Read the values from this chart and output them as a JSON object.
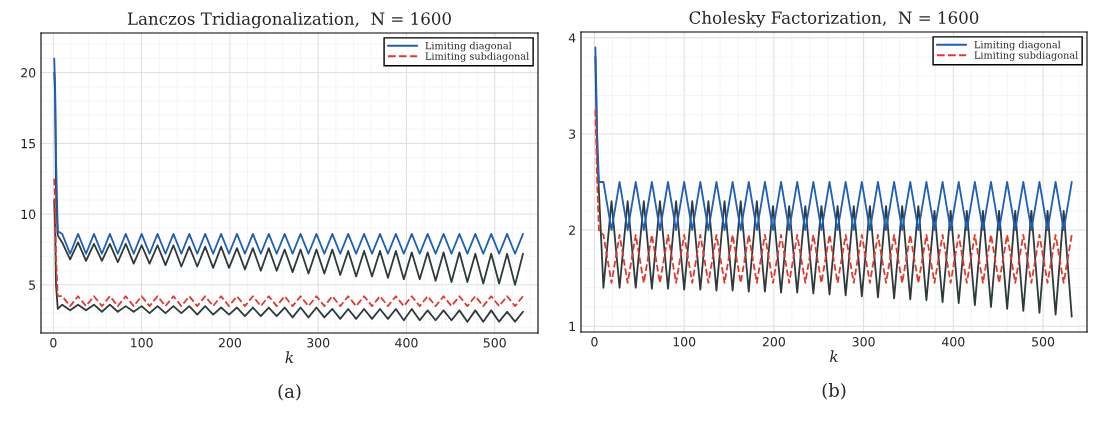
{
  "chart_data": [
    {
      "type": "line",
      "title": "Lanczos Tridiagonalization,  N = 1600",
      "xlabel": "k",
      "xlim": [
        -14,
        549
      ],
      "ylim": [
        1.6,
        22.8
      ],
      "xticks": [
        0,
        100,
        200,
        300,
        400,
        500
      ],
      "yticks": [
        5,
        10,
        15,
        20
      ],
      "grid": true,
      "legend": "top right",
      "annotations": [
        "(a)"
      ],
      "x": [
        1,
        2,
        3,
        5,
        10,
        19,
        28,
        37,
        46,
        55,
        64,
        73,
        82,
        91,
        100,
        109,
        118,
        127,
        136,
        145,
        154,
        163,
        172,
        181,
        190,
        199,
        208,
        217,
        226,
        235,
        244,
        253,
        262,
        271,
        280,
        289,
        298,
        307,
        316,
        325,
        334,
        343,
        352,
        361,
        370,
        379,
        388,
        397,
        406,
        415,
        424,
        433,
        442,
        451,
        460,
        469,
        478,
        487,
        496,
        505,
        514,
        523,
        532
      ],
      "series": [
        {
          "color": "#2f3a3a",
          "values": [
            20,
            18.5,
            11.5,
            8.5,
            8.0,
            6.8,
            8.0,
            6.7,
            7.9,
            6.7,
            7.9,
            6.6,
            7.9,
            6.5,
            7.8,
            6.5,
            7.8,
            6.4,
            7.8,
            6.3,
            7.7,
            6.3,
            7.7,
            6.2,
            7.7,
            6.2,
            7.6,
            6.1,
            7.6,
            6.0,
            7.6,
            6.0,
            7.5,
            5.9,
            7.5,
            5.8,
            7.5,
            5.8,
            7.5,
            5.7,
            7.4,
            5.6,
            7.4,
            5.6,
            7.4,
            5.5,
            7.4,
            5.4,
            7.3,
            5.4,
            7.3,
            5.3,
            7.3,
            5.2,
            7.3,
            5.2,
            7.2,
            5.1,
            7.2,
            5.1,
            7.2,
            5.0,
            7.2
          ]
        },
        {
          "color": "#2f3a3a",
          "values": [
            11,
            9,
            5,
            3.3,
            3.6,
            3.2,
            3.6,
            3.2,
            3.6,
            3.1,
            3.6,
            3.1,
            3.5,
            3.1,
            3.5,
            3.0,
            3.5,
            3.0,
            3.5,
            3.0,
            3.5,
            2.9,
            3.5,
            2.9,
            3.4,
            2.9,
            3.4,
            2.8,
            3.4,
            2.8,
            3.4,
            2.8,
            3.4,
            2.7,
            3.4,
            2.7,
            3.4,
            2.7,
            3.3,
            2.6,
            3.3,
            2.6,
            3.3,
            2.6,
            3.3,
            2.6,
            3.3,
            2.5,
            3.3,
            2.5,
            3.2,
            2.5,
            3.2,
            2.5,
            3.2,
            2.4,
            3.2,
            2.4,
            3.2,
            2.4,
            3.1,
            2.4,
            3.1
          ]
        },
        {
          "name": "Limiting diagonal",
          "color": "#1f5fb5",
          "line_style": "solid",
          "values": [
            21,
            19,
            14,
            8.8,
            8.6,
            7.2,
            8.6,
            7.2,
            8.6,
            7.2,
            8.6,
            7.2,
            8.6,
            7.2,
            8.6,
            7.2,
            8.6,
            7.2,
            8.6,
            7.2,
            8.6,
            7.2,
            8.6,
            7.2,
            8.6,
            7.2,
            8.6,
            7.2,
            8.6,
            7.2,
            8.6,
            7.2,
            8.6,
            7.2,
            8.6,
            7.2,
            8.6,
            7.2,
            8.6,
            7.2,
            8.6,
            7.2,
            8.6,
            7.2,
            8.6,
            7.2,
            8.6,
            7.2,
            8.6,
            7.2,
            8.6,
            7.2,
            8.6,
            7.2,
            8.6,
            7.2,
            8.6,
            7.2,
            8.6,
            7.2,
            8.6,
            7.2,
            8.6
          ]
        },
        {
          "name": "Limiting subdiagonal",
          "color": "#e03a2e",
          "line_style": "dashed",
          "values": [
            12.5,
            11,
            7,
            4.2,
            4.2,
            3.5,
            4.2,
            3.5,
            4.2,
            3.5,
            4.2,
            3.5,
            4.2,
            3.5,
            4.2,
            3.5,
            4.2,
            3.5,
            4.2,
            3.5,
            4.2,
            3.5,
            4.2,
            3.5,
            4.2,
            3.5,
            4.2,
            3.5,
            4.2,
            3.5,
            4.2,
            3.5,
            4.2,
            3.5,
            4.2,
            3.5,
            4.2,
            3.5,
            4.2,
            3.5,
            4.2,
            3.5,
            4.2,
            3.5,
            4.2,
            3.5,
            4.2,
            3.5,
            4.2,
            3.5,
            4.2,
            3.5,
            4.2,
            3.5,
            4.2,
            3.5,
            4.2,
            3.5,
            4.2,
            3.5,
            4.2,
            3.5,
            4.2
          ]
        }
      ]
    },
    {
      "type": "line",
      "title": "Cholesky Factorization,  N = 1600",
      "xlabel": "k",
      "xlim": [
        -15,
        549
      ],
      "ylim": [
        0.94,
        4.06
      ],
      "xticks": [
        0,
        100,
        200,
        300,
        400,
        500
      ],
      "yticks": [
        1,
        2,
        3,
        4
      ],
      "grid": true,
      "legend": "top right",
      "annotations": [
        "(b)"
      ],
      "x": [
        1,
        2,
        3,
        5,
        10,
        19,
        28,
        37,
        46,
        55,
        64,
        73,
        82,
        91,
        100,
        109,
        118,
        127,
        136,
        145,
        154,
        163,
        172,
        181,
        190,
        199,
        208,
        217,
        226,
        235,
        244,
        253,
        262,
        271,
        280,
        289,
        298,
        307,
        316,
        325,
        334,
        343,
        352,
        361,
        370,
        379,
        388,
        397,
        406,
        415,
        424,
        433,
        442,
        451,
        460,
        469,
        478,
        487,
        496,
        505,
        514,
        523,
        532
      ],
      "series": [
        {
          "color": "#2f3a3a",
          "values": [
            3.8,
            3.3,
            2.8,
            2.4,
            1.4,
            2.3,
            1.4,
            2.3,
            1.4,
            2.3,
            1.39,
            2.3,
            1.39,
            2.3,
            1.38,
            2.3,
            1.38,
            2.3,
            1.37,
            2.3,
            1.37,
            2.3,
            1.36,
            2.3,
            1.36,
            2.25,
            1.35,
            2.25,
            1.35,
            2.25,
            1.34,
            2.25,
            1.33,
            2.25,
            1.32,
            2.25,
            1.31,
            2.25,
            1.3,
            2.25,
            1.29,
            2.25,
            1.28,
            2.25,
            1.27,
            2.2,
            1.25,
            2.2,
            1.24,
            2.2,
            1.22,
            2.2,
            1.2,
            2.2,
            1.18,
            2.2,
            1.16,
            2.2,
            1.14,
            2.2,
            1.12,
            2.2,
            1.1
          ]
        },
        {
          "name": "Limiting diagonal",
          "color": "#1f5fb5",
          "line_style": "solid",
          "values": [
            3.9,
            3.5,
            3.0,
            2.5,
            2.5,
            2.0,
            2.5,
            2.0,
            2.5,
            2.0,
            2.5,
            2.0,
            2.5,
            2.0,
            2.5,
            2.0,
            2.5,
            2.0,
            2.5,
            2.0,
            2.5,
            2.0,
            2.5,
            2.0,
            2.5,
            2.0,
            2.5,
            2.0,
            2.5,
            2.0,
            2.5,
            2.0,
            2.5,
            2.0,
            2.5,
            2.0,
            2.5,
            2.0,
            2.5,
            2.0,
            2.5,
            2.0,
            2.5,
            2.0,
            2.5,
            2.0,
            2.5,
            2.0,
            2.5,
            2.0,
            2.5,
            2.0,
            2.5,
            2.0,
            2.5,
            2.0,
            2.5,
            2.0,
            2.5,
            2.0,
            2.5,
            2.0,
            2.5
          ]
        },
        {
          "name": "Limiting subdiagonal",
          "color": "#e03a2e",
          "line_style": "dashed",
          "values": [
            3.25,
            2.9,
            2.5,
            2.0,
            1.95,
            1.45,
            1.95,
            1.45,
            1.95,
            1.45,
            1.95,
            1.45,
            1.95,
            1.45,
            1.95,
            1.45,
            1.95,
            1.45,
            1.95,
            1.45,
            1.95,
            1.45,
            1.95,
            1.45,
            1.95,
            1.45,
            1.95,
            1.45,
            1.95,
            1.45,
            1.95,
            1.45,
            1.95,
            1.45,
            1.95,
            1.45,
            1.95,
            1.45,
            1.95,
            1.45,
            1.95,
            1.45,
            1.95,
            1.45,
            1.95,
            1.45,
            1.95,
            1.45,
            1.95,
            1.45,
            1.95,
            1.45,
            1.95,
            1.45,
            1.95,
            1.45,
            1.95,
            1.45,
            1.95,
            1.45,
            1.95,
            1.45,
            1.95
          ]
        }
      ]
    }
  ]
}
